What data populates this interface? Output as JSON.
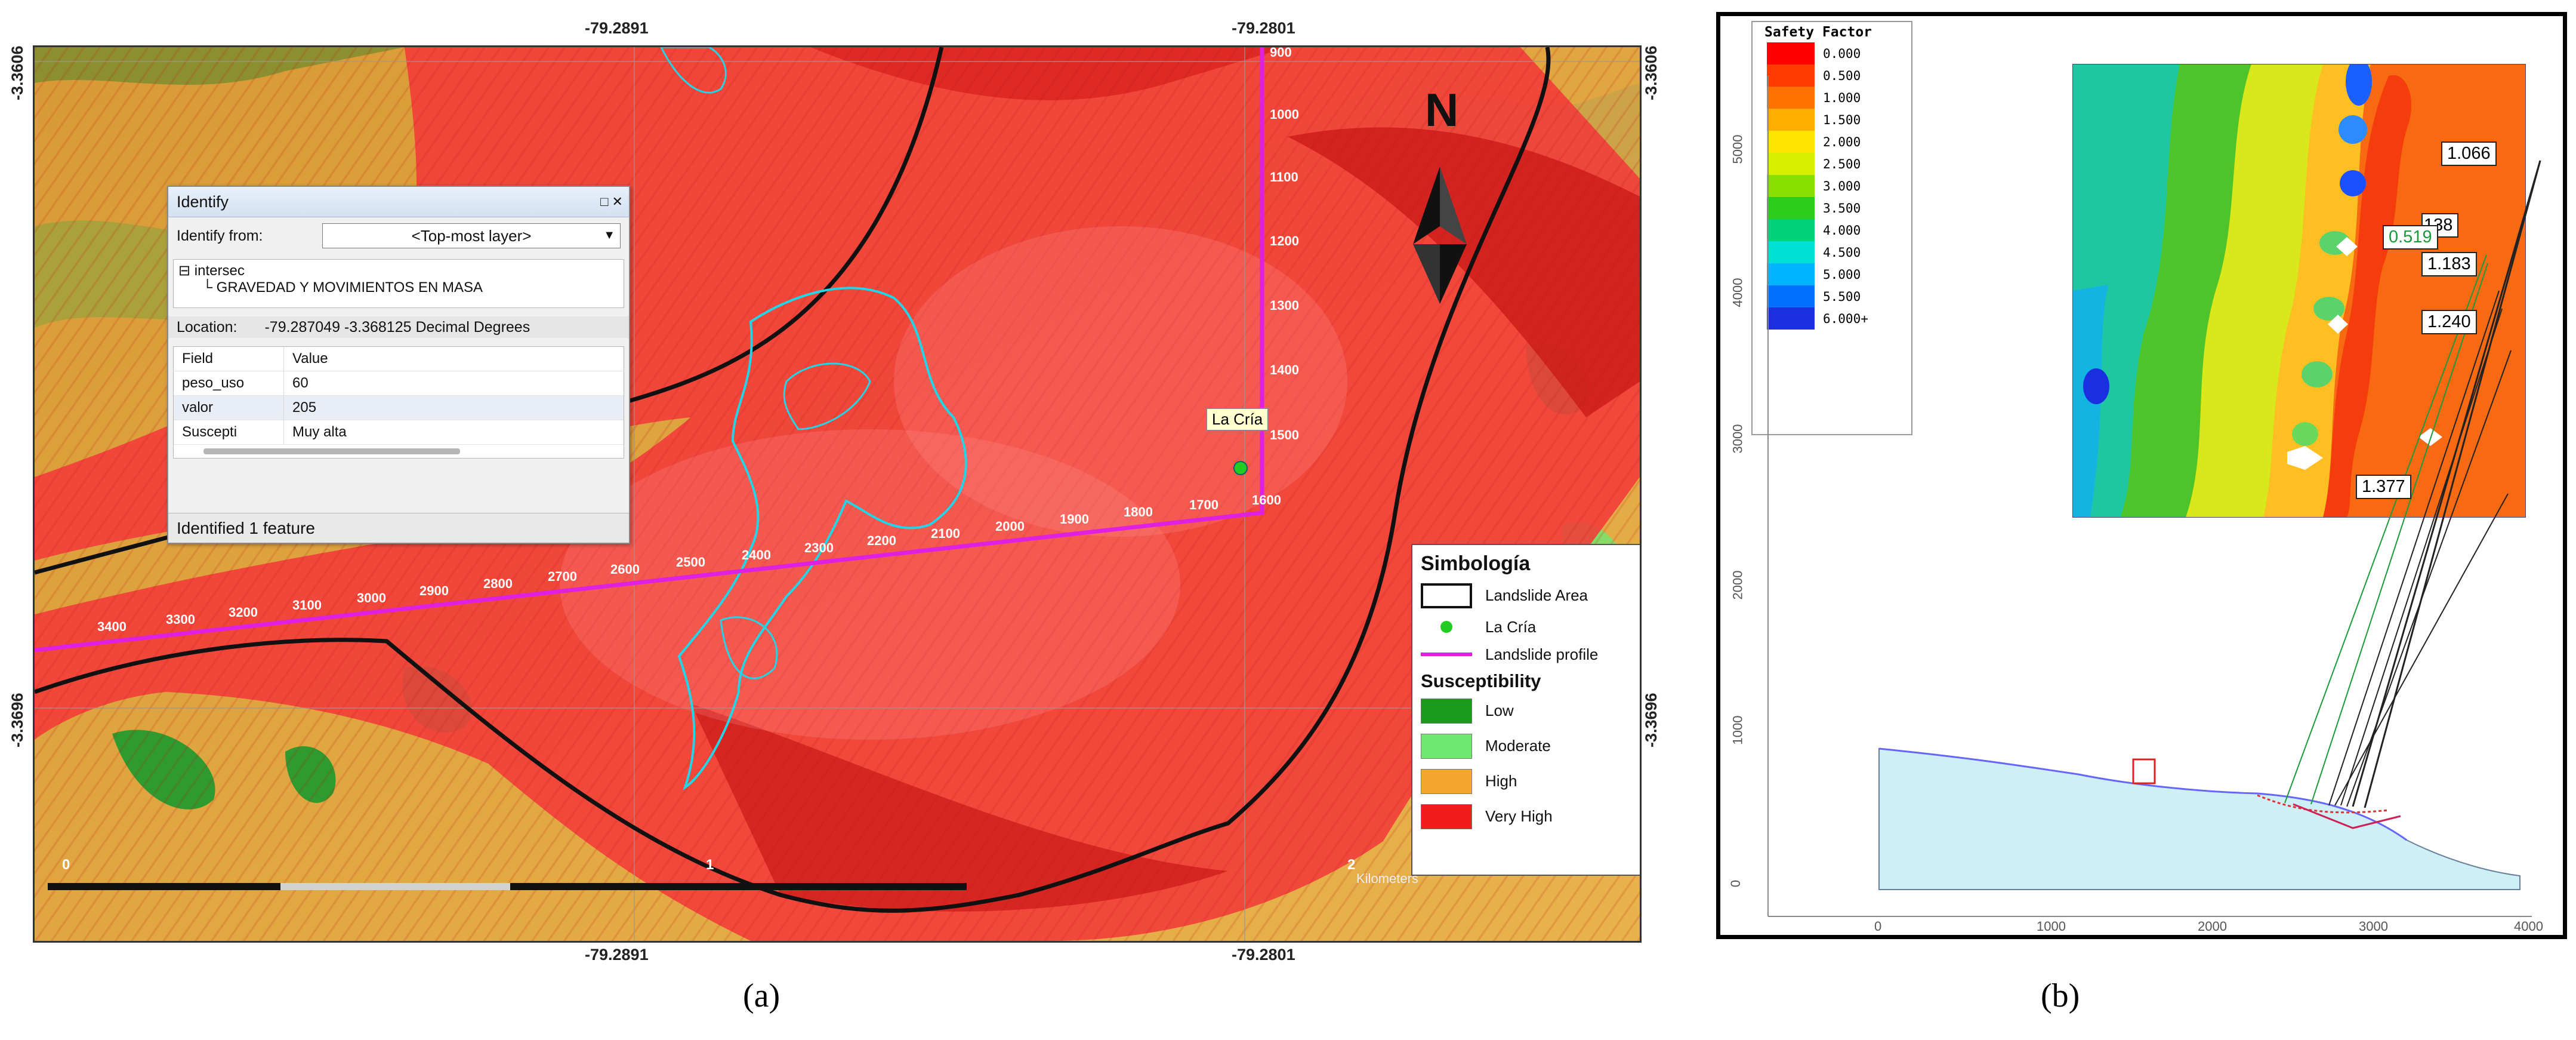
{
  "panel_a": {
    "coords": {
      "top_left_lon": "-79.2891",
      "top_right_lon": "-79.2801",
      "bottom_left_lon": "-79.2891",
      "bottom_right_lon": "-79.2801",
      "left_top_lat": "-3.3606",
      "right_top_lat": "-3.3606",
      "left_bottom_lat": "-3.3696",
      "right_bottom_lat": "-3.3696"
    },
    "north_label": "N",
    "profile_ticks_vertical": [
      "900",
      "1000",
      "1100",
      "1200",
      "1300",
      "1400",
      "1500",
      "1600"
    ],
    "profile_ticks_horizontal": [
      "1700",
      "1800",
      "1900",
      "2000",
      "2100",
      "2200",
      "2300",
      "2400",
      "2500",
      "2600",
      "2700",
      "2800",
      "2900",
      "3000",
      "3100",
      "3200",
      "3300",
      "3400"
    ],
    "place_label": "La Cría",
    "scalebar": {
      "labels": [
        "0",
        "1",
        "2"
      ],
      "unit": "Kilometers"
    },
    "identify": {
      "title": "Identify",
      "window_buttons": "□ ✕",
      "from_label": "Identify from:",
      "from_value": "<Top-most layer>",
      "layer": "intersec",
      "feature": "GRAVEDAD Y MOVIMIENTOS EN MASA",
      "location_label": "Location:",
      "location_value": "-79.287049  -3.368125 Decimal Degrees",
      "header": {
        "field": "Field",
        "value": "Value"
      },
      "rows": [
        {
          "field": "peso_uso",
          "value": "60"
        },
        {
          "field": "valor",
          "value": "205"
        },
        {
          "field": "Suscepti",
          "value": "Muy alta"
        }
      ],
      "status": "Identified 1 feature"
    },
    "legend": {
      "title": "Simbología",
      "items": [
        {
          "label": "Landslide Area"
        },
        {
          "label": "La Cría",
          "color": "#22cc22"
        },
        {
          "label": "Landslide profile",
          "color": "#e020e0"
        }
      ],
      "susceptibility_title": "Susceptibility",
      "classes": [
        {
          "label": "Low",
          "color": "#1a9a1a"
        },
        {
          "label": "Moderate",
          "color": "#6ee86e"
        },
        {
          "label": "High",
          "color": "#f3a72c"
        },
        {
          "label": "Very High",
          "color": "#f21c1c"
        }
      ]
    },
    "caption": "(a)"
  },
  "panel_b": {
    "legend_title": "Safety Factor",
    "legend_items": [
      {
        "label": "0.000",
        "color": "#ff0000"
      },
      {
        "label": "0.500",
        "color": "#ff3a00"
      },
      {
        "label": "1.000",
        "color": "#ff7200"
      },
      {
        "label": "1.500",
        "color": "#ffae00"
      },
      {
        "label": "2.000",
        "color": "#ffe600"
      },
      {
        "label": "2.500",
        "color": "#d6f000"
      },
      {
        "label": "3.000",
        "color": "#86e000"
      },
      {
        "label": "3.500",
        "color": "#2ccc1c"
      },
      {
        "label": "4.000",
        "color": "#00d27a"
      },
      {
        "label": "4.500",
        "color": "#00e0d4"
      },
      {
        "label": "5.000",
        "color": "#00b4ff"
      },
      {
        "label": "5.500",
        "color": "#0070ff"
      },
      {
        "label": "6.000+",
        "color": "#1a30e0"
      }
    ],
    "factor_labels": [
      "1.066",
      "138",
      "0.519",
      "1.183",
      "1.240",
      "1.377"
    ],
    "y_ticks": [
      "0",
      "1000",
      "2000",
      "3000",
      "4000",
      "5000"
    ],
    "x_ticks": [
      "0",
      "1000",
      "2000",
      "3000",
      "4000"
    ],
    "caption": "(b)"
  }
}
